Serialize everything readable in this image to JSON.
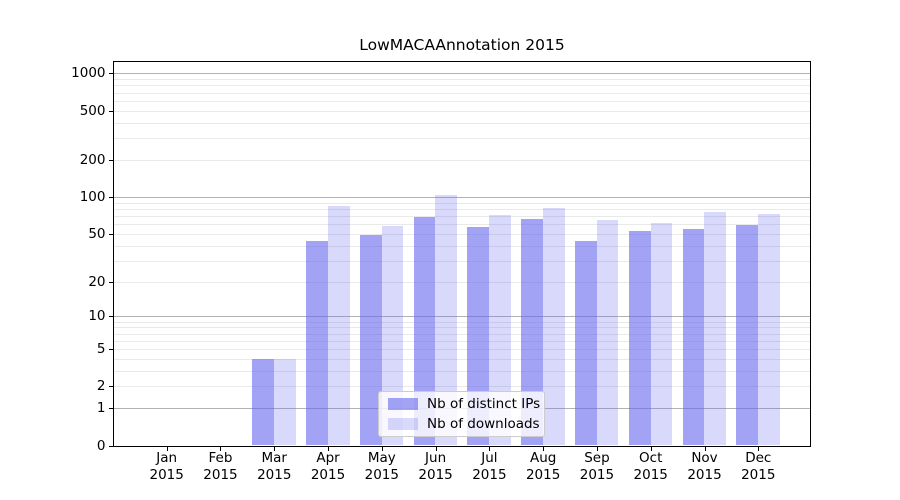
{
  "chart_data": {
    "type": "bar",
    "title": "LowMACAAnnotation 2015",
    "xlabel": "",
    "ylabel": "",
    "scale": "log1p",
    "ylim": [
      0,
      1200
    ],
    "grid": "on",
    "year": "2015",
    "categories": [
      "Jan",
      "Feb",
      "Mar",
      "Apr",
      "May",
      "Jun",
      "Jul",
      "Aug",
      "Sep",
      "Oct",
      "Nov",
      "Dec"
    ],
    "yticks": [
      0,
      1,
      2,
      5,
      10,
      20,
      50,
      100,
      200,
      500,
      1000
    ],
    "grid_major": [
      1,
      10,
      100,
      1000
    ],
    "grid_minor": [
      2,
      3,
      4,
      5,
      6,
      7,
      8,
      9,
      20,
      30,
      40,
      50,
      60,
      70,
      80,
      90,
      200,
      300,
      400,
      500,
      600,
      700,
      800,
      900
    ],
    "series": [
      {
        "name": "Nb of distinct IPs",
        "color": "rgba(102,102,238,0.6)",
        "values": [
          0,
          0,
          4,
          44,
          49,
          68,
          57,
          66,
          44,
          53,
          55,
          59
        ]
      },
      {
        "name": "Nb of downloads",
        "color": "rgba(102,102,238,0.25)",
        "values": [
          0,
          0,
          4,
          85,
          58,
          104,
          71,
          81,
          65,
          61,
          75,
          72
        ]
      }
    ],
    "legend_position": "lower center"
  },
  "colors": {
    "grid_major": "#b2b2b2",
    "grid_minor": "#e9e9e9",
    "axis": "#000000",
    "background": "#ffffff"
  }
}
